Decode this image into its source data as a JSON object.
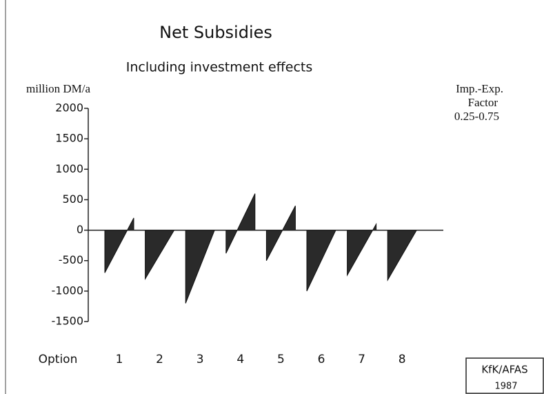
{
  "chart_data": {
    "type": "sawtooth",
    "title": "Net Subsidies",
    "subtitle": "Including investment effects",
    "y_label": "million DM/a",
    "annotation": [
      "Imp.-Exp.",
      "Factor",
      "0.25-0.75"
    ],
    "x_label": "Option",
    "credit": [
      "KfK/AFAS",
      "1987"
    ],
    "categories": [
      "1",
      "2",
      "3",
      "4",
      "5",
      "6",
      "7",
      "8"
    ],
    "low": [
      -700,
      -800,
      -1200,
      -380,
      -500,
      -1000,
      -740,
      -820
    ],
    "high": [
      200,
      0,
      0,
      600,
      400,
      0,
      100,
      0
    ],
    "color": "#2a2a2a",
    "ylim": [
      -1500,
      2000
    ],
    "yticks": [
      2000,
      1500,
      1000,
      500,
      0,
      -500,
      -1000,
      -1500
    ]
  }
}
